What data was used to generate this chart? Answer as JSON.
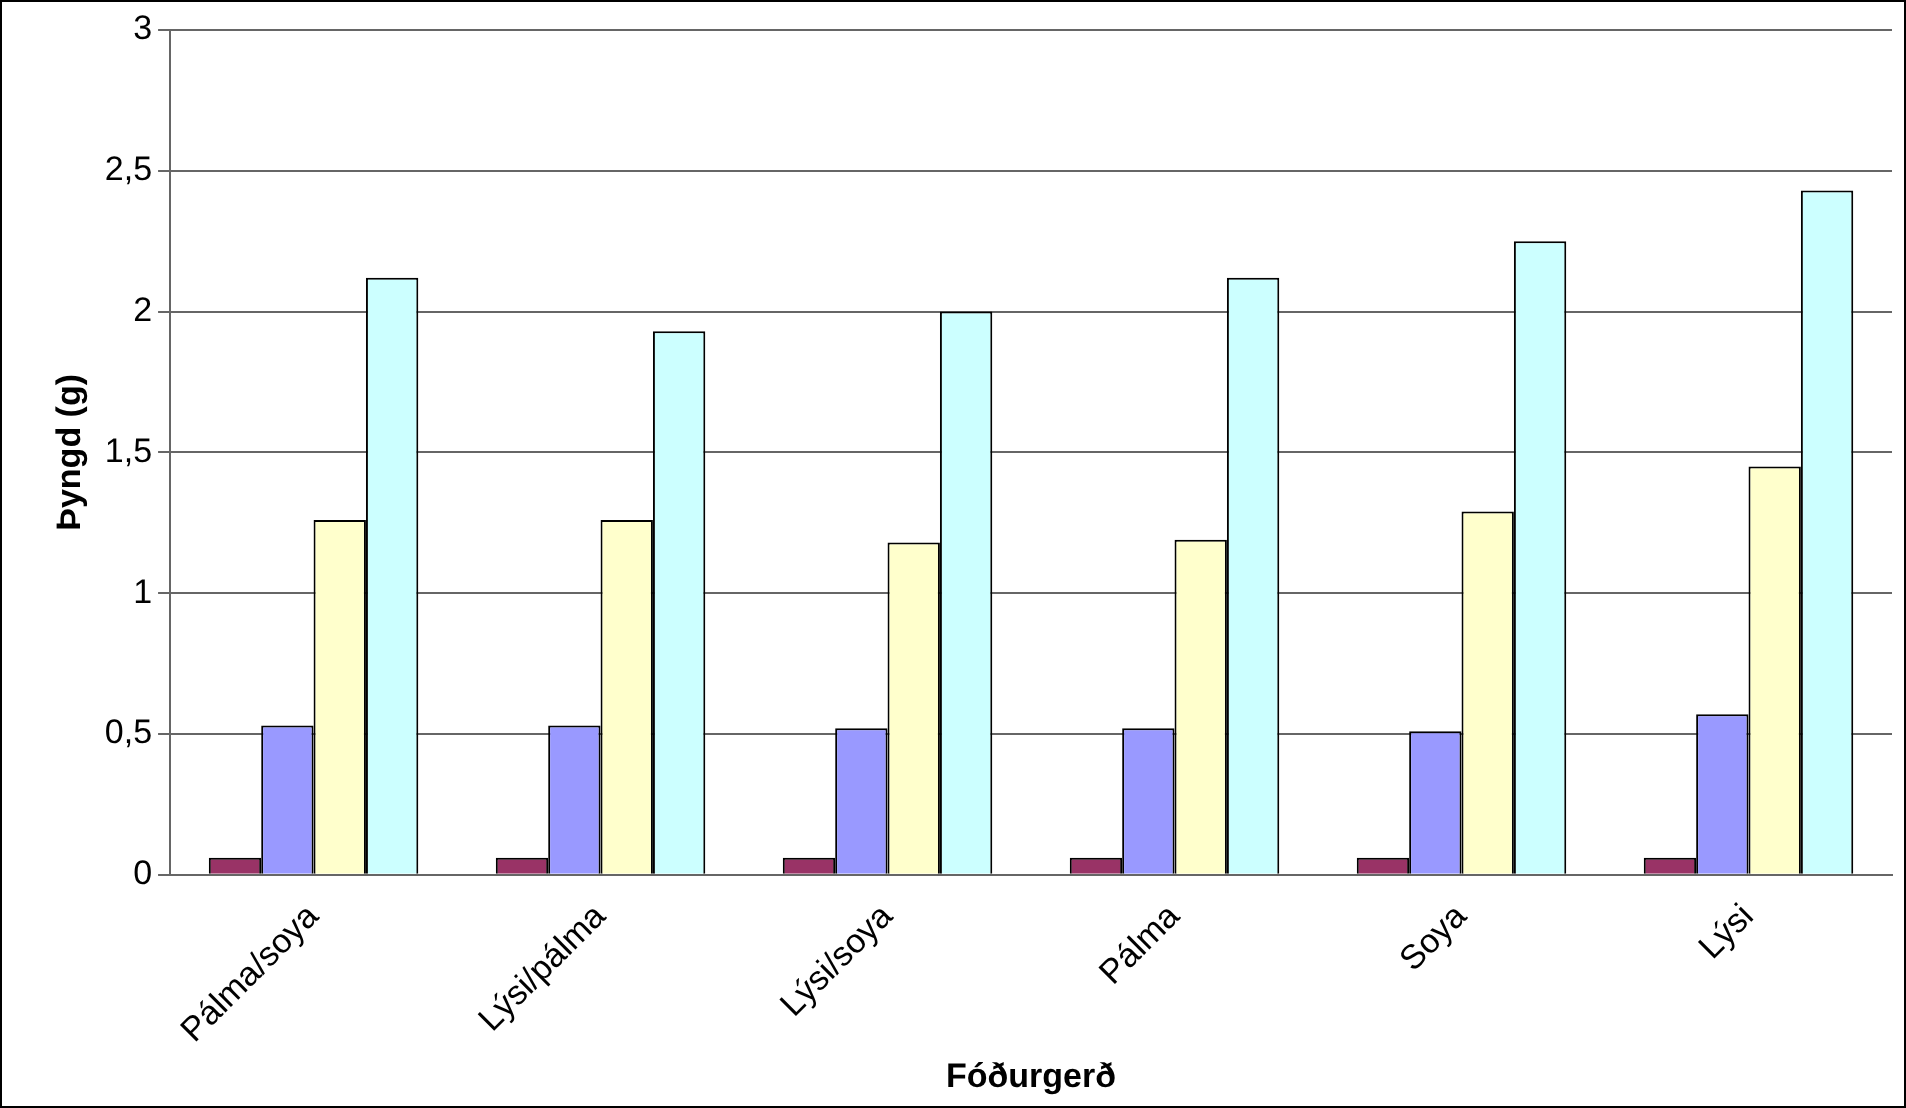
{
  "chart_data": {
    "type": "bar",
    "xlabel": "Fóðurgerð",
    "ylabel": "Þyngd (g)",
    "categories": [
      "Pálma/soya",
      "Lýsi/pálma",
      "Lýsi/soya",
      "Pálma",
      "Soya",
      "Lýsi"
    ],
    "series": [
      {
        "color": "#993366",
        "values": [
          0.06,
          0.06,
          0.06,
          0.06,
          0.06,
          0.06
        ]
      },
      {
        "color": "#9999ff",
        "values": [
          0.53,
          0.53,
          0.52,
          0.52,
          0.51,
          0.57
        ]
      },
      {
        "color": "#ffffcc",
        "values": [
          1.26,
          1.26,
          1.18,
          1.19,
          1.29,
          1.45
        ]
      },
      {
        "color": "#ccffff",
        "values": [
          2.12,
          1.93,
          2.0,
          2.12,
          2.25,
          2.43
        ]
      }
    ],
    "ylim": [
      0,
      3
    ],
    "yticks": [
      0,
      {
        "value": 0.5,
        "label": "0,5"
      },
      1,
      {
        "value": 1.5,
        "label": "1,5"
      },
      2,
      {
        "value": 2.5,
        "label": "2,5"
      },
      3
    ],
    "grid": "y",
    "legend": false
  }
}
